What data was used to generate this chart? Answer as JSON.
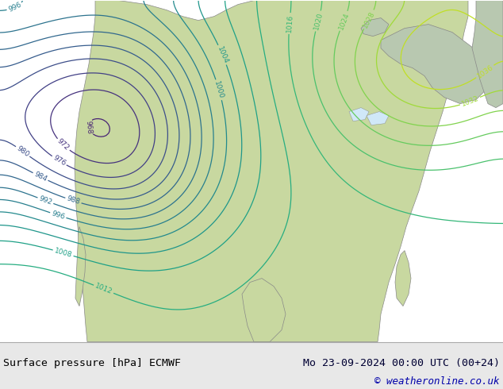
{
  "title_left": "Surface pressure [hPa] ECMWF",
  "title_right": "Mo 23-09-2024 00:00 UTC (00+24)",
  "copyright": "© weatheronline.co.uk",
  "bg_color": "#d0e8f8",
  "land_color": "#c8d8a0",
  "label_color_left": "#000000",
  "label_color_right": "#000033",
  "copyright_color": "#0000aa",
  "bottom_bar_color": "#e8e8e8",
  "figsize": [
    6.34,
    4.9
  ],
  "dpi": 100
}
